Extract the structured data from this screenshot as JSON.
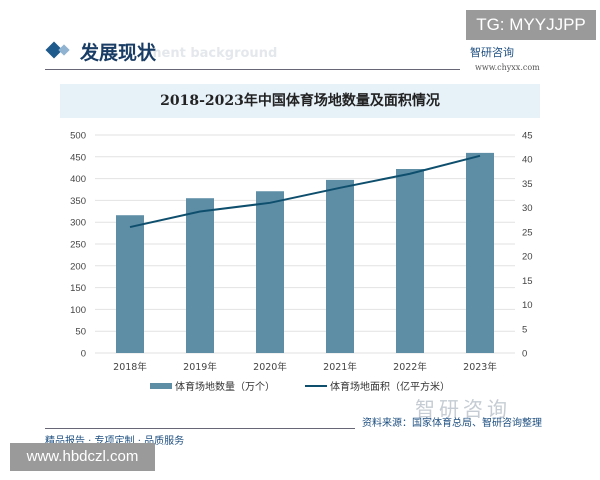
{
  "watermark_tag": "TG: MYYJJPP",
  "header": {
    "title": "发展现状",
    "subtitle": "ment background",
    "logo": "智研咨询",
    "logo_url": "www.chyxx.com"
  },
  "footer": {
    "slogan": "精品报告 · 专项定制 · 品质服务",
    "source": "资料来源：国家体育总局、智研咨询整理",
    "watermark": "智研咨询",
    "site": "www.hbdczl.com"
  },
  "chart_data": {
    "type": "bar",
    "title": "2018-2023年中国体育场地数量及面积情况",
    "categories": [
      "2018年",
      "2019年",
      "2020年",
      "2021年",
      "2022年",
      "2023年"
    ],
    "series": [
      {
        "name": "体育场地数量（万个）",
        "type": "bar",
        "axis": "left",
        "values": [
          316,
          355,
          371,
          397,
          422,
          459
        ],
        "color": "#5e8ea6"
      },
      {
        "name": "体育场地面积（亿平方米）",
        "type": "line",
        "axis": "right",
        "values": [
          26,
          29.2,
          31,
          34.1,
          37,
          40.7
        ],
        "color": "#0f4f6e"
      }
    ],
    "ylim_left": [
      0,
      500
    ],
    "yticks_left": [
      0,
      50,
      100,
      150,
      200,
      250,
      300,
      350,
      400,
      450,
      500
    ],
    "ylim_right": [
      0,
      45
    ],
    "yticks_right": [
      0,
      5,
      10,
      15,
      20,
      25,
      30,
      35,
      40,
      45
    ],
    "grid": true,
    "legend": "bottom"
  }
}
